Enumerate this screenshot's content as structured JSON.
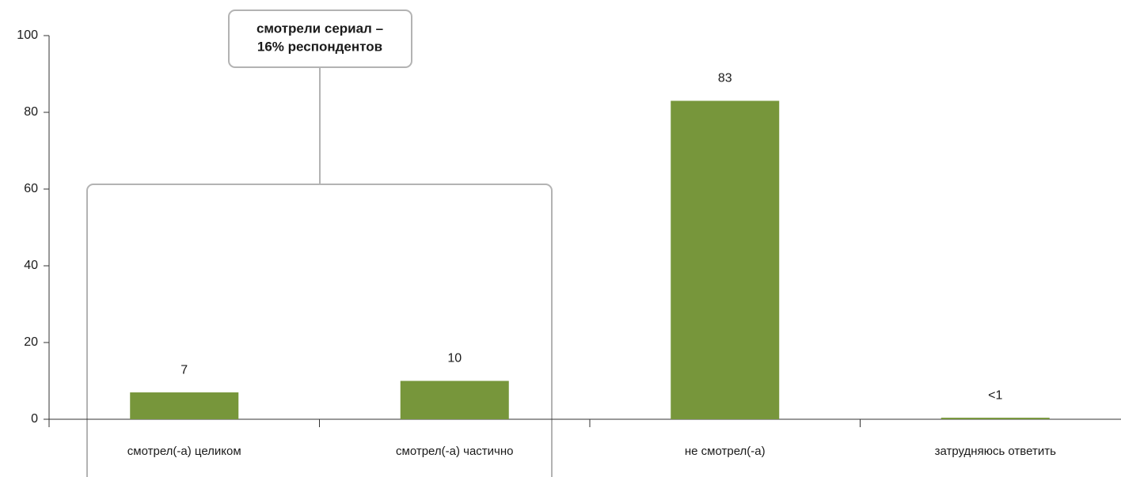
{
  "chart_data": {
    "type": "bar",
    "categories": [
      "смотрел(-а) целиком",
      "смотрел(-а) частично",
      "не смотрел(-а)",
      "затрудняюсь ответить"
    ],
    "values": [
      7,
      10,
      83,
      0.4
    ],
    "value_labels": [
      "7",
      "10",
      "83",
      "<1"
    ],
    "color": "#77963b",
    "ylim": [
      0,
      100
    ],
    "yticks": [
      0,
      20,
      40,
      60,
      80,
      100
    ],
    "annotation": [
      "смотрели сериал –",
      "16% респондентов"
    ]
  }
}
